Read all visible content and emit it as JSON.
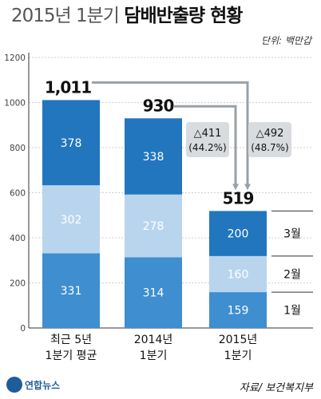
{
  "header": {
    "title_prefix": "2015년 1분기",
    "title_topic": "담배반출량 현황",
    "unit": "단위: 백만갑"
  },
  "footer": {
    "source": "자료/ 보건복지부",
    "logo_text": "연합뉴스"
  },
  "chart_data": {
    "type": "bar",
    "stacked": true,
    "categories": [
      "최근 5년\n1분기 평균",
      "2014년\n1분기",
      "2015년\n1분기"
    ],
    "series": [
      {
        "name": "1월",
        "values": [
          331,
          314,
          159
        ],
        "color": "#3f8ed0",
        "text_color": "#ffffff"
      },
      {
        "name": "2월",
        "values": [
          302,
          278,
          160
        ],
        "color": "#b9d5ee",
        "text_color": "#ffffff"
      },
      {
        "name": "3월",
        "values": [
          378,
          338,
          200
        ],
        "color": "#2176be",
        "text_color": "#ffffff"
      }
    ],
    "totals": [
      "1,011",
      "930",
      "519"
    ],
    "decreases": [
      {
        "value": "△411",
        "pct": "(44.2%)"
      },
      {
        "value": "△492",
        "pct": "(48.7%)"
      }
    ],
    "ylim": [
      0,
      1200
    ],
    "yticks": [
      0,
      200,
      400,
      600,
      800,
      1000,
      1200
    ],
    "grid": true,
    "legend": "right-of-last-bar"
  }
}
